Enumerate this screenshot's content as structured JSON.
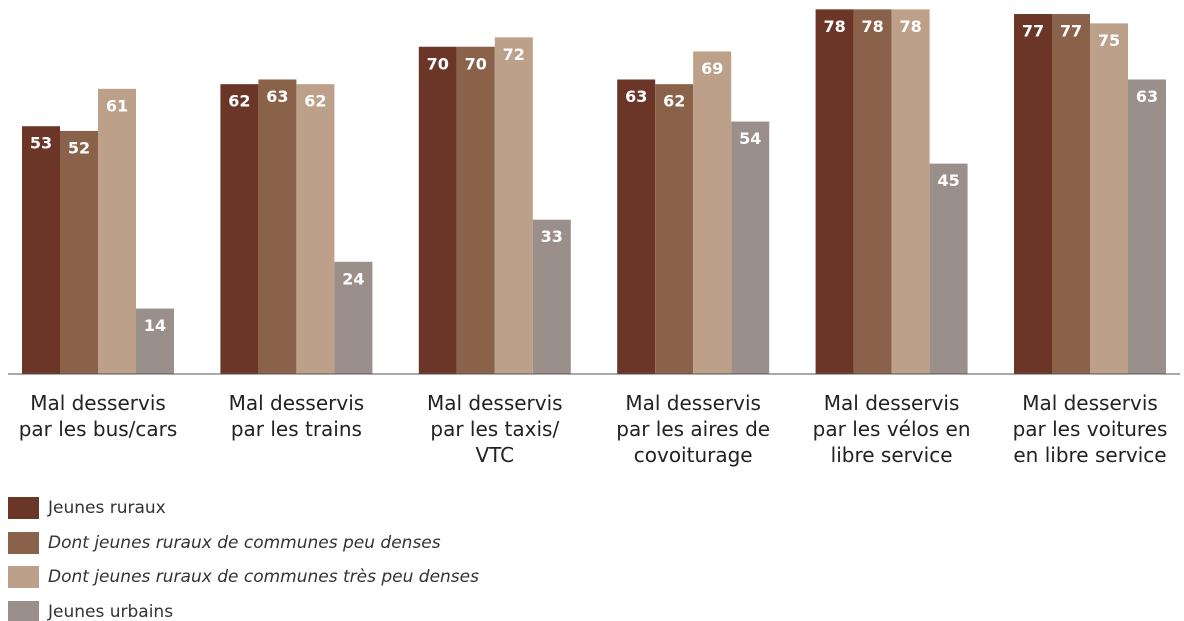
{
  "chart_data": {
    "type": "bar",
    "categories": [
      "Mal desservis\npar les bus/cars",
      "Mal desservis\npar les trains",
      "Mal desservis\npar les taxis/\nVTC",
      "Mal desservis\npar les aires de\ncovoiturage",
      "Mal desservis\npar les vélos en\nlibre service",
      "Mal desservis\npar les voitures\nen libre service"
    ],
    "series": [
      {
        "name": "Jeunes ruraux",
        "color": "#6b3627",
        "font_style": "normal",
        "values": [
          53,
          62,
          70,
          63,
          78,
          77
        ]
      },
      {
        "name": "Dont jeunes ruraux de communes peu denses",
        "color": "#8a624a",
        "font_style": "italic",
        "values": [
          52,
          63,
          70,
          62,
          78,
          77
        ]
      },
      {
        "name": "Dont jeunes ruraux de communes très peu denses",
        "color": "#bda08a",
        "font_style": "italic",
        "values": [
          61,
          62,
          72,
          69,
          78,
          75
        ]
      },
      {
        "name": "Jeunes urbains",
        "color": "#9b8f8c",
        "font_style": "normal",
        "values": [
          14,
          24,
          33,
          54,
          45,
          63
        ]
      }
    ],
    "ylim": [
      0,
      80
    ]
  }
}
